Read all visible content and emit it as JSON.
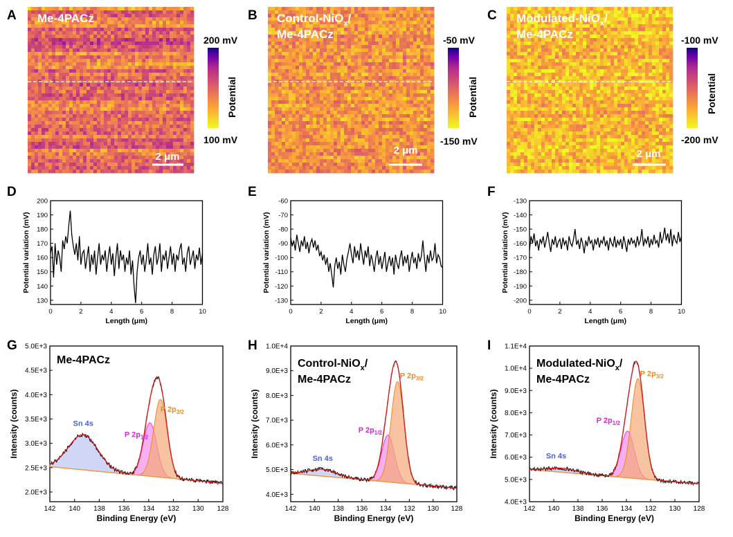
{
  "chart_data": [
    {
      "panel": "A",
      "type": "heatmap",
      "label": "Me-4PACz",
      "scale_bar": "2 μm",
      "colorbar": {
        "max": "200 mV",
        "min": "100 mV",
        "title": "Potential",
        "colormap": "plasma"
      },
      "base_level": 0.45
    },
    {
      "panel": "B",
      "type": "heatmap",
      "label_lines": [
        "Control-NiO",
        "x",
        "/",
        "Me-4PACz"
      ],
      "scale_bar": "2 μm",
      "colorbar": {
        "max": "-50 mV",
        "min": "-150 mV",
        "title": "Potential",
        "colormap": "plasma"
      },
      "base_level": 0.32
    },
    {
      "panel": "C",
      "type": "heatmap",
      "label_lines": [
        "Modulated-NiO",
        "x",
        "/",
        "Me-4PACz"
      ],
      "scale_bar": "2 μm",
      "colorbar": {
        "max": "-100 mV",
        "min": "-200 mV",
        "title": "Potential",
        "colormap": "plasma"
      },
      "base_level": 0.2
    },
    {
      "panel": "D",
      "type": "line",
      "xlabel": "Length (μm)",
      "ylabel": "Potential variation (mV)",
      "xlim": [
        0,
        10
      ],
      "ylim": [
        127,
        200
      ],
      "xticks": [
        0,
        2,
        4,
        6,
        8,
        10
      ],
      "yticks": [
        130,
        140,
        150,
        160,
        170,
        180,
        190,
        200
      ],
      "x": [
        0.0,
        0.1,
        0.2,
        0.3,
        0.4,
        0.5,
        0.6,
        0.7,
        0.8,
        0.9,
        1.0,
        1.1,
        1.2,
        1.3,
        1.4,
        1.5,
        1.6,
        1.7,
        1.8,
        1.9,
        2.0,
        2.1,
        2.2,
        2.3,
        2.4,
        2.5,
        2.6,
        2.7,
        2.8,
        2.9,
        3.0,
        3.1,
        3.2,
        3.3,
        3.4,
        3.5,
        3.6,
        3.7,
        3.8,
        3.9,
        4.0,
        4.1,
        4.2,
        4.3,
        4.4,
        4.5,
        4.6,
        4.7,
        4.8,
        4.9,
        5.0,
        5.1,
        5.2,
        5.3,
        5.4,
        5.5,
        5.6,
        5.7,
        5.8,
        5.9,
        6.0,
        6.1,
        6.2,
        6.3,
        6.4,
        6.5,
        6.6,
        6.7,
        6.8,
        6.9,
        7.0,
        7.1,
        7.2,
        7.3,
        7.4,
        7.5,
        7.6,
        7.7,
        7.8,
        7.9,
        8.0,
        8.1,
        8.2,
        8.3,
        8.4,
        8.5,
        8.6,
        8.7,
        8.8,
        8.9,
        9.0,
        9.1,
        9.2,
        9.3,
        9.4,
        9.5,
        9.6,
        9.7,
        9.8,
        9.9,
        10.0
      ],
      "y": [
        163,
        168,
        146,
        170,
        155,
        165,
        160,
        150,
        172,
        166,
        175,
        170,
        182,
        193,
        176,
        168,
        162,
        170,
        158,
        175,
        155,
        163,
        165,
        152,
        160,
        168,
        150,
        162,
        155,
        165,
        148,
        160,
        170,
        155,
        162,
        158,
        165,
        150,
        160,
        168,
        155,
        163,
        147,
        160,
        170,
        152,
        165,
        158,
        162,
        150,
        160,
        155,
        165,
        148,
        158,
        140,
        128,
        150,
        160,
        165,
        155,
        162,
        150,
        158,
        170,
        155,
        160,
        148,
        162,
        168,
        155,
        160,
        170,
        150,
        162,
        158,
        165,
        152,
        160,
        168,
        155,
        163,
        150,
        162,
        158,
        166,
        170,
        155,
        160,
        150,
        163,
        168,
        155,
        160,
        165,
        152,
        162,
        158,
        167,
        155,
        163
      ]
    },
    {
      "panel": "E",
      "type": "line",
      "xlabel": "Length (μm)",
      "ylabel": "Potential variation (mV)",
      "xlim": [
        0,
        10
      ],
      "ylim": [
        -133,
        -60
      ],
      "xticks": [
        0,
        2,
        4,
        6,
        8,
        10
      ],
      "yticks": [
        -60,
        -70,
        -80,
        -90,
        -100,
        -110,
        -120,
        -130
      ],
      "x": [
        0.0,
        0.1,
        0.2,
        0.3,
        0.4,
        0.5,
        0.6,
        0.7,
        0.8,
        0.9,
        1.0,
        1.1,
        1.2,
        1.3,
        1.4,
        1.5,
        1.6,
        1.7,
        1.8,
        1.9,
        2.0,
        2.1,
        2.2,
        2.3,
        2.4,
        2.5,
        2.6,
        2.7,
        2.8,
        2.9,
        3.0,
        3.1,
        3.2,
        3.3,
        3.4,
        3.5,
        3.6,
        3.7,
        3.8,
        3.9,
        4.0,
        4.1,
        4.2,
        4.3,
        4.4,
        4.5,
        4.6,
        4.7,
        4.8,
        4.9,
        5.0,
        5.1,
        5.2,
        5.3,
        5.4,
        5.5,
        5.6,
        5.7,
        5.8,
        5.9,
        6.0,
        6.1,
        6.2,
        6.3,
        6.4,
        6.5,
        6.6,
        6.7,
        6.8,
        6.9,
        7.0,
        7.1,
        7.2,
        7.3,
        7.4,
        7.5,
        7.6,
        7.7,
        7.8,
        7.9,
        8.0,
        8.1,
        8.2,
        8.3,
        8.4,
        8.5,
        8.6,
        8.7,
        8.8,
        8.9,
        9.0,
        9.1,
        9.2,
        9.3,
        9.4,
        9.5,
        9.6,
        9.7,
        9.8,
        9.9,
        10.0
      ],
      "y": [
        -86,
        -92,
        -88,
        -95,
        -84,
        -90,
        -96,
        -88,
        -92,
        -85,
        -94,
        -89,
        -97,
        -90,
        -87,
        -93,
        -88,
        -95,
        -91,
        -99,
        -96,
        -102,
        -98,
        -105,
        -100,
        -110,
        -104,
        -112,
        -121,
        -106,
        -100,
        -108,
        -103,
        -112,
        -98,
        -105,
        -110,
        -101,
        -96,
        -90,
        -98,
        -104,
        -92,
        -100,
        -95,
        -102,
        -90,
        -98,
        -105,
        -95,
        -100,
        -92,
        -106,
        -98,
        -103,
        -110,
        -100,
        -95,
        -105,
        -99,
        -108,
        -102,
        -96,
        -110,
        -104,
        -99,
        -106,
        -100,
        -112,
        -98,
        -104,
        -108,
        -100,
        -95,
        -106,
        -99,
        -104,
        -98,
        -110,
        -102,
        -96,
        -104,
        -100,
        -108,
        -97,
        -103,
        -99,
        -88,
        -100,
        -110,
        -98,
        -104,
        -95,
        -102,
        -100,
        -90,
        -104,
        -98,
        -100,
        -106,
        -107
      ]
    },
    {
      "panel": "F",
      "type": "line",
      "xlabel": "Length (μm)",
      "ylabel": "Potential variation (mV)",
      "xlim": [
        0,
        10
      ],
      "ylim": [
        -203,
        -130
      ],
      "xticks": [
        0,
        2,
        4,
        6,
        8,
        10
      ],
      "yticks": [
        -130,
        -140,
        -150,
        -160,
        -170,
        -180,
        -190,
        -200
      ],
      "x": [
        0.0,
        0.1,
        0.2,
        0.3,
        0.4,
        0.5,
        0.6,
        0.7,
        0.8,
        0.9,
        1.0,
        1.1,
        1.2,
        1.3,
        1.4,
        1.5,
        1.6,
        1.7,
        1.8,
        1.9,
        2.0,
        2.1,
        2.2,
        2.3,
        2.4,
        2.5,
        2.6,
        2.7,
        2.8,
        2.9,
        3.0,
        3.1,
        3.2,
        3.3,
        3.4,
        3.5,
        3.6,
        3.7,
        3.8,
        3.9,
        4.0,
        4.1,
        4.2,
        4.3,
        4.4,
        4.5,
        4.6,
        4.7,
        4.8,
        4.9,
        5.0,
        5.1,
        5.2,
        5.3,
        5.4,
        5.5,
        5.6,
        5.7,
        5.8,
        5.9,
        6.0,
        6.1,
        6.2,
        6.3,
        6.4,
        6.5,
        6.6,
        6.7,
        6.8,
        6.9,
        7.0,
        7.1,
        7.2,
        7.3,
        7.4,
        7.5,
        7.6,
        7.7,
        7.8,
        7.9,
        8.0,
        8.1,
        8.2,
        8.3,
        8.4,
        8.5,
        8.6,
        8.7,
        8.8,
        8.9,
        9.0,
        9.1,
        9.2,
        9.3,
        9.4,
        9.5,
        9.6,
        9.7,
        9.8,
        9.9,
        10.0
      ],
      "y": [
        -165,
        -155,
        -160,
        -153,
        -162,
        -158,
        -165,
        -157,
        -160,
        -155,
        -163,
        -158,
        -152,
        -160,
        -166,
        -157,
        -161,
        -155,
        -163,
        -159,
        -157,
        -164,
        -156,
        -161,
        -158,
        -165,
        -155,
        -160,
        -162,
        -157,
        -150,
        -161,
        -158,
        -164,
        -156,
        -160,
        -167,
        -158,
        -162,
        -155,
        -160,
        -158,
        -165,
        -157,
        -161,
        -156,
        -163,
        -158,
        -160,
        -155,
        -162,
        -158,
        -165,
        -156,
        -160,
        -162,
        -155,
        -163,
        -158,
        -161,
        -157,
        -164,
        -155,
        -160,
        -166,
        -157,
        -161,
        -156,
        -160,
        -158,
        -163,
        -155,
        -161,
        -158,
        -150,
        -162,
        -157,
        -160,
        -155,
        -163,
        -157,
        -161,
        -154,
        -160,
        -158,
        -163,
        -152,
        -160,
        -156,
        -149,
        -158,
        -153,
        -160,
        -150,
        -162,
        -154,
        -158,
        -160,
        -152,
        -159,
        -155
      ]
    },
    {
      "panel": "G",
      "type": "line",
      "label": "Me-4PACz",
      "xlabel": "Binding Energy (eV)",
      "ylabel": "Intensity (counts)",
      "xlim": [
        142,
        128
      ],
      "ylim": [
        1800,
        5000
      ],
      "xticks": [
        142,
        140,
        138,
        136,
        134,
        132,
        130,
        128
      ],
      "yticks": [
        2000,
        2500,
        3000,
        3500,
        4000,
        4500,
        5000
      ],
      "ytick_labels": [
        "2.0E+3",
        "2.5E+3",
        "3.0E+3",
        "3.5E+3",
        "4.0E+3",
        "4.5E+3",
        "5.0E+3"
      ],
      "fit": {
        "background_start": 2520,
        "background_end": 2180,
        "sn4s_center": 139.3,
        "sn4s_height": 720,
        "sn4s_width": 1.2,
        "p12_center": 133.9,
        "p12_height": 1100,
        "p32_center": 133.05,
        "p32_height": 1600,
        "p_width": 0.55
      },
      "peak_labels": [
        {
          "text": "Sn 4s",
          "color": "#4a60d8",
          "x": 139.3,
          "y": 3360
        },
        {
          "text": "P 2p",
          "sub": "1/2",
          "color": "#e020e0",
          "x": 135.0,
          "y": 3130
        },
        {
          "text": "P 2p",
          "sub": "3/2",
          "color": "#ee8a20",
          "x": 132.1,
          "y": 3650
        }
      ]
    },
    {
      "panel": "H",
      "type": "line",
      "label_lines": [
        "Control-NiO",
        "x",
        "/",
        "Me-4PACz"
      ],
      "xlabel": "Binding Energy (eV)",
      "ylabel": "Intensity (counts)",
      "xlim": [
        142,
        128
      ],
      "ylim": [
        3700,
        10000
      ],
      "xticks": [
        142,
        140,
        138,
        136,
        134,
        132,
        130,
        128
      ],
      "yticks": [
        4000,
        5000,
        6000,
        7000,
        8000,
        9000,
        10000
      ],
      "ytick_labels": [
        "4.0E+3",
        "5.0E+3",
        "6.0E+3",
        "7.0E+3",
        "8.0E+3",
        "9.0E+3",
        "1.0E+4"
      ],
      "fit": {
        "background_start": 4850,
        "background_end": 4250,
        "sn4s_center": 139.3,
        "sn4s_height": 280,
        "sn4s_width": 1.2,
        "p12_center": 133.8,
        "p12_height": 1900,
        "p32_center": 133.0,
        "p32_height": 4100,
        "p_width": 0.55
      },
      "peak_labels": [
        {
          "text": "Sn 4s",
          "color": "#4a60d8",
          "x": 139.3,
          "y": 5350
        },
        {
          "text": "P 2p",
          "sub": "1/2",
          "color": "#e020e0",
          "x": 135.3,
          "y": 6500
        },
        {
          "text": "P 2p",
          "sub": "3/2",
          "color": "#ee8a20",
          "x": 131.8,
          "y": 8700
        }
      ]
    },
    {
      "panel": "I",
      "type": "line",
      "label_lines": [
        "Modulated-NiO",
        "x",
        "/",
        "Me-4PACz"
      ],
      "xlabel": "Binding Energy (eV)",
      "ylabel": "Intensity (counts)",
      "xlim": [
        142,
        128
      ],
      "ylim": [
        4000,
        11000
      ],
      "xticks": [
        142,
        140,
        138,
        136,
        134,
        132,
        130,
        128
      ],
      "yticks": [
        4000,
        5000,
        6000,
        7000,
        8000,
        9000,
        10000,
        11000
      ],
      "ytick_labels": [
        "4.0E+3",
        "5.0E+3",
        "6.0E+3",
        "7.0E+3",
        "8.0E+3",
        "9.0E+3",
        "1.0E+4",
        "1.1E+4"
      ],
      "fit": {
        "background_start": 5450,
        "background_end": 4800,
        "sn4s_center": 139.3,
        "sn4s_height": 180,
        "sn4s_width": 1.2,
        "p12_center": 133.9,
        "p12_height": 2100,
        "p32_center": 133.05,
        "p32_height": 4500,
        "p_width": 0.55
      },
      "peak_labels": [
        {
          "text": "Sn 4s",
          "color": "#4a60d8",
          "x": 139.8,
          "y": 5950
        },
        {
          "text": "P 2p",
          "sub": "1/2",
          "color": "#e020e0",
          "x": 135.5,
          "y": 7550
        },
        {
          "text": "P 2p",
          "sub": "3/2",
          "color": "#ee8a20",
          "x": 131.9,
          "y": 9650
        }
      ]
    }
  ]
}
